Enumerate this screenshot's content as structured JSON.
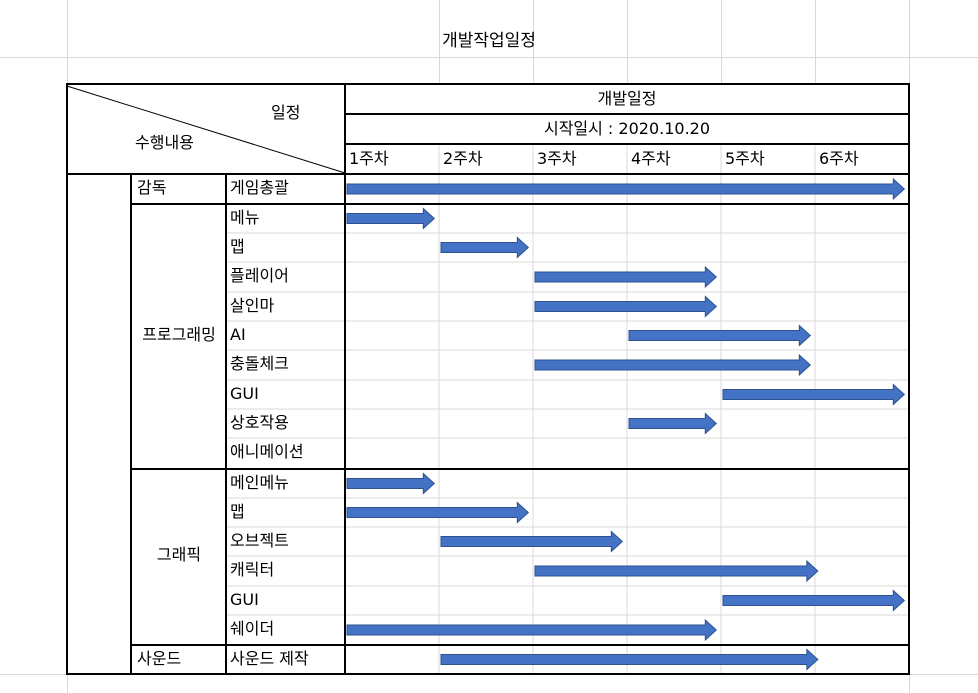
{
  "title": "개발작업일정",
  "header": {
    "schedule_label": "일정",
    "task_label": "수행내용",
    "dev_schedule": "개발일정",
    "start_date": "시작일시 : 2020.10.20",
    "weeks": [
      "1주차",
      "2주차",
      "3주차",
      "4주차",
      "5주차",
      "6주차"
    ]
  },
  "groups": [
    {
      "name": "감독",
      "tasks": [
        {
          "name": "게임총괄",
          "start": 0.0,
          "end": 5.95
        }
      ]
    },
    {
      "name": "프로그래밍",
      "tasks": [
        {
          "name": "메뉴",
          "start": 0.0,
          "end": 0.95
        },
        {
          "name": "맵",
          "start": 1.0,
          "end": 1.95
        },
        {
          "name": "플레이어",
          "start": 2.0,
          "end": 3.95
        },
        {
          "name": "살인마",
          "start": 2.0,
          "end": 3.95
        },
        {
          "name": "AI",
          "start": 3.0,
          "end": 4.95
        },
        {
          "name": "충돌체크",
          "start": 2.0,
          "end": 4.95
        },
        {
          "name": "GUI",
          "start": 4.0,
          "end": 5.95
        },
        {
          "name": "상호작용",
          "start": 3.0,
          "end": 3.95
        },
        {
          "name": "애니메이션",
          "start": null,
          "end": null
        }
      ]
    },
    {
      "name": "그래픽",
      "tasks": [
        {
          "name": "메인메뉴",
          "start": 0.0,
          "end": 0.95
        },
        {
          "name": "맵",
          "start": 0.0,
          "end": 1.95
        },
        {
          "name": "오브젝트",
          "start": 1.0,
          "end": 2.95
        },
        {
          "name": "캐릭터",
          "start": 2.0,
          "end": 5.03
        },
        {
          "name": "GUI",
          "start": 4.0,
          "end": 5.95
        },
        {
          "name": "쉐이더",
          "start": 0.0,
          "end": 3.95
        }
      ]
    },
    {
      "name": "사운드",
      "tasks": [
        {
          "name": "사운드 제작",
          "start": 1.0,
          "end": 5.03
        }
      ]
    }
  ],
  "colors": {
    "bar_fill": "#4472c4",
    "bar_stroke": "#2f528f"
  }
}
